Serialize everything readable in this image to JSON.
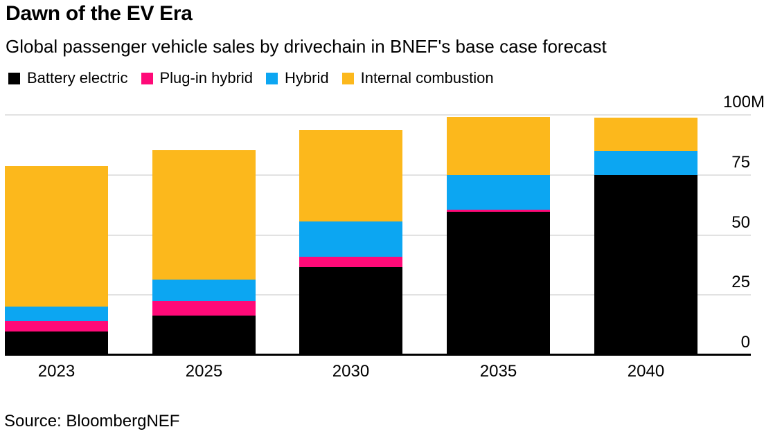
{
  "header": {
    "title": "Dawn of the EV Era",
    "subtitle": "Global passenger vehicle sales by drivechain in BNEF's base case forecast"
  },
  "source_note": "Source: BloombergNEF",
  "colors": {
    "battery_electric": "#000000",
    "plug_in_hybrid": "#FF0A78",
    "hybrid": "#0CA6F2",
    "internal_combustion": "#FCB81C",
    "gridline": "#E2E2E2",
    "axis": "#000000",
    "background": "#FFFFFF"
  },
  "chart_data": {
    "type": "bar",
    "stacked": true,
    "title": "Dawn of the EV Era",
    "subtitle": "Global passenger vehicle sales by drivechain in BNEF's base case forecast",
    "unit": "million vehicles",
    "categories": [
      "2023",
      "2025",
      "2030",
      "2035",
      "2040"
    ],
    "series": [
      {
        "name": "Battery electric",
        "color": "#000000",
        "values": [
          9.5,
          16.1,
          36.3,
          59.4,
          74.6
        ]
      },
      {
        "name": "Plug-in hybrid",
        "color": "#FF0A78",
        "values": [
          4.3,
          6.1,
          4.3,
          0.9,
          0
        ]
      },
      {
        "name": "Hybrid",
        "color": "#0CA6F2",
        "values": [
          6.1,
          8.9,
          14.7,
          14.4,
          10.2
        ]
      },
      {
        "name": "Internal combustion",
        "color": "#FCB81C",
        "values": [
          58.5,
          53.9,
          38.0,
          24.2,
          13.7
        ]
      }
    ],
    "y_ticks": [
      {
        "label": "0",
        "value": 0
      },
      {
        "label": "25",
        "value": 25
      },
      {
        "label": "50",
        "value": 50
      },
      {
        "label": "75",
        "value": 75
      },
      {
        "label": "100M",
        "value": 100
      }
    ],
    "ylim": [
      0,
      100
    ],
    "grid": "horizontal",
    "legend_position": "top",
    "stack_order_bottom_to_top": [
      "Battery electric",
      "Plug-in hybrid",
      "Hybrid",
      "Internal combustion"
    ]
  }
}
